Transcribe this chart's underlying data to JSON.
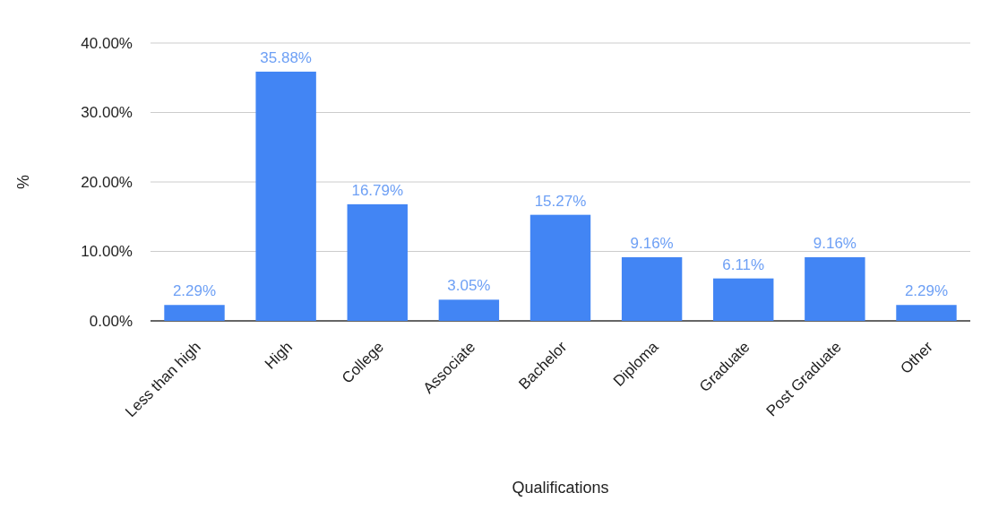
{
  "chart_data": {
    "type": "bar",
    "xlabel": "Qualifications",
    "ylabel": "%",
    "categories": [
      "Less than high",
      "High",
      "College",
      "Associate",
      "Bachelor",
      "Diploma",
      "Graduate",
      "Post Graduate",
      "Other"
    ],
    "values": [
      2.29,
      35.88,
      16.79,
      3.05,
      15.27,
      9.16,
      6.11,
      9.16,
      2.29
    ],
    "value_labels": [
      "2.29%",
      "35.88%",
      "16.79%",
      "3.05%",
      "15.27%",
      "9.16%",
      "6.11%",
      "9.16%",
      "2.29%"
    ],
    "color": "#4285f4",
    "ylim": [
      0,
      40
    ],
    "yticks": [
      {
        "value": 0,
        "label": "0.00%"
      },
      {
        "value": 10,
        "label": "10.00%"
      },
      {
        "value": 20,
        "label": "20.00%"
      },
      {
        "value": 30,
        "label": "30.00%"
      },
      {
        "value": 40,
        "label": "40.00%"
      }
    ],
    "grid": true
  }
}
